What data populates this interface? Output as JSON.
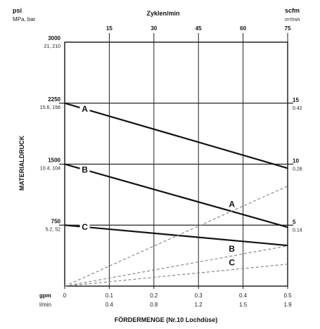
{
  "chart_data": {
    "type": "line",
    "title": "",
    "xlabel": "FÖRDERMENGE (Nr.10 Lochdüse)",
    "ylabel": "MATERIALDRUCK",
    "top_axis": {
      "label": "Zyklen/min",
      "ticks": [
        "15",
        "30",
        "45",
        "60",
        "75"
      ]
    },
    "left_units": {
      "primary": "psi",
      "secondary": "MPa, bar"
    },
    "right_units": {
      "primary": "scfm",
      "secondary": "m³/min"
    },
    "bottom_units": {
      "primary": "gpm",
      "secondary": "l/min"
    },
    "x_ticks": [
      {
        "gpm": "0",
        "lpm": ""
      },
      {
        "gpm": "0.1",
        "lpm": "0.4"
      },
      {
        "gpm": "0.2",
        "lpm": "0.8"
      },
      {
        "gpm": "0.3",
        "lpm": "1.2"
      },
      {
        "gpm": "0.4",
        "lpm": "1.5"
      },
      {
        "gpm": "0.5",
        "lpm": "1.9"
      }
    ],
    "left_ticks": [
      {
        "psi": "3000",
        "mpa": "21, 210"
      },
      {
        "psi": "2250",
        "mpa": "15.6, 156"
      },
      {
        "psi": "1500",
        "mpa": "10.4, 104"
      },
      {
        "psi": "750",
        "mpa": "5.2, 52"
      }
    ],
    "right_ticks": [
      {
        "scfm": "15",
        "m3": "0.42"
      },
      {
        "scfm": "10",
        "m3": "0.28"
      },
      {
        "scfm": "5",
        "m3": "0.14"
      }
    ],
    "xlim": [
      0,
      0.5
    ],
    "ylim_psi": [
      0,
      3000
    ],
    "ylim_scfm": [
      0,
      20
    ],
    "gridlines_psi": [
      750,
      1500,
      2250
    ],
    "series": [
      {
        "name": "A",
        "kind": "pressure",
        "x": [
          0,
          0.5
        ],
        "y": [
          2250,
          1450
        ],
        "color": "#111111"
      },
      {
        "name": "B",
        "kind": "pressure",
        "x": [
          0,
          0.5
        ],
        "y": [
          1500,
          725
        ],
        "color": "#111111"
      },
      {
        "name": "C",
        "kind": "pressure",
        "x": [
          0,
          0.5
        ],
        "y": [
          750,
          500
        ],
        "color": "#111111"
      },
      {
        "name": "A",
        "kind": "air",
        "x": [
          0,
          0.5
        ],
        "y": [
          0,
          8.2
        ],
        "color": "#888888"
      },
      {
        "name": "B",
        "kind": "air",
        "x": [
          0,
          0.5
        ],
        "y": [
          0,
          3.3
        ],
        "color": "#888888"
      },
      {
        "name": "C",
        "kind": "air",
        "x": [
          0,
          0.5
        ],
        "y": [
          0,
          1.8
        ],
        "color": "#888888"
      }
    ],
    "grid": false
  }
}
